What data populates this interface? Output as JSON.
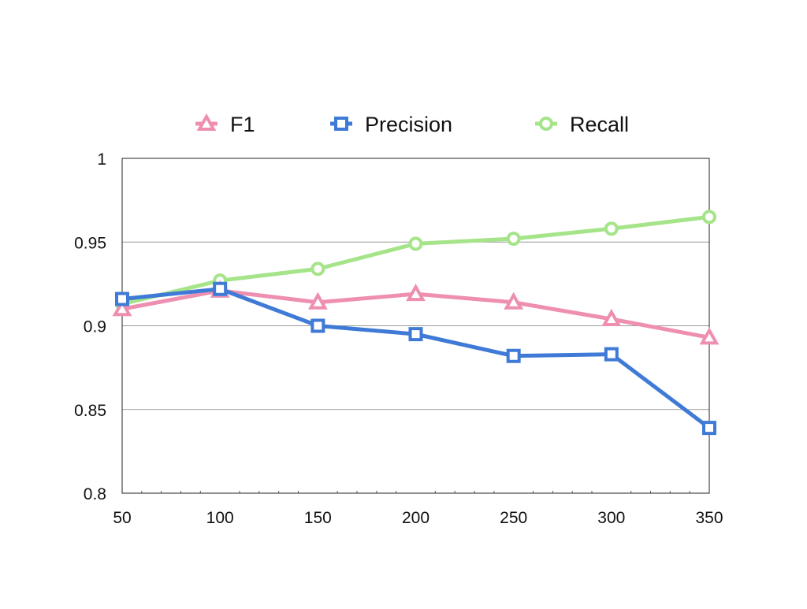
{
  "chart_data": {
    "type": "line",
    "title": "",
    "xlabel": "",
    "ylabel": "",
    "x": [
      50,
      100,
      150,
      200,
      250,
      300,
      350
    ],
    "x_tick_labels": [
      "50",
      "100",
      "150",
      "200",
      "250",
      "300",
      "350"
    ],
    "ylim": [
      0.8,
      1.0
    ],
    "y_ticks": [
      0.8,
      0.85,
      0.9,
      0.95,
      1.0
    ],
    "y_tick_labels": [
      "0.8",
      "0.85",
      "0.9",
      "0.95",
      "1"
    ],
    "grid": "horizontal",
    "legend_position": "top",
    "series": [
      {
        "name": "F1",
        "marker": "triangle",
        "color": "#EE8FB1",
        "values": [
          0.91,
          0.921,
          0.914,
          0.919,
          0.914,
          0.904,
          0.893
        ]
      },
      {
        "name": "Precision",
        "marker": "square",
        "color": "#3F7AD6",
        "values": [
          0.916,
          0.922,
          0.9,
          0.895,
          0.882,
          0.883,
          0.839
        ]
      },
      {
        "name": "Recall",
        "marker": "circle",
        "color": "#A6E48A",
        "values": [
          0.913,
          0.927,
          0.934,
          0.949,
          0.952,
          0.958,
          0.965
        ]
      }
    ]
  }
}
